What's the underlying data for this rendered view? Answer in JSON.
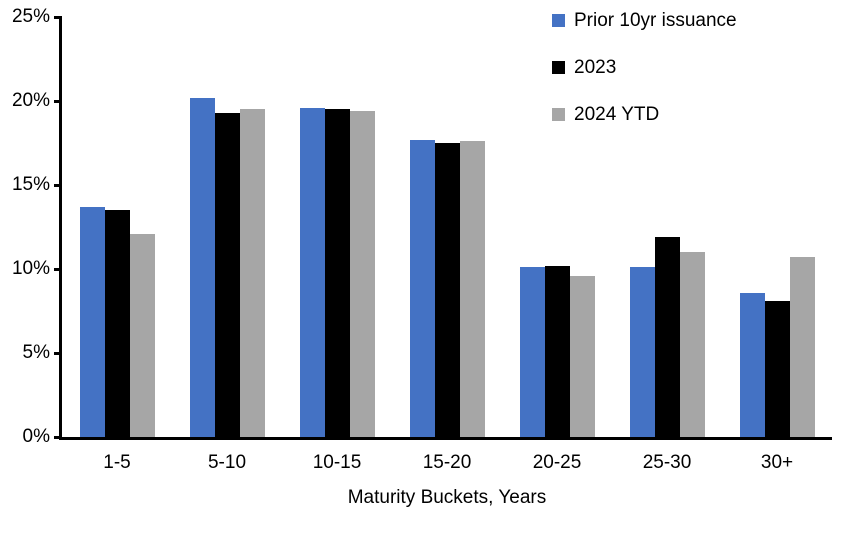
{
  "chart_data": {
    "type": "bar",
    "title": "",
    "categories": [
      "1-5",
      "5-10",
      "10-15",
      "15-20",
      "20-25",
      "25-30",
      "30+"
    ],
    "series": [
      {
        "name": "Prior 10yr issuance",
        "color": "#4472C4",
        "values": [
          13.7,
          20.2,
          19.6,
          17.7,
          10.1,
          10.1,
          8.6
        ]
      },
      {
        "name": "2023",
        "color": "#000000",
        "values": [
          13.5,
          19.3,
          19.5,
          17.5,
          10.2,
          11.9,
          8.1
        ]
      },
      {
        "name": "2024 YTD",
        "color": "#A6A6A6",
        "values": [
          12.1,
          19.5,
          19.4,
          17.6,
          9.6,
          11.0,
          10.7
        ]
      }
    ],
    "xlabel": "Maturity Buckets, Years",
    "ylabel": "",
    "ylim": [
      0,
      25
    ],
    "yticks": [
      0,
      5,
      10,
      15,
      20,
      25
    ],
    "ytick_format": "{v}%",
    "grid": false,
    "legend_position": "top-right",
    "axis_color": "#000000",
    "background_color": "#FFFFFF"
  }
}
